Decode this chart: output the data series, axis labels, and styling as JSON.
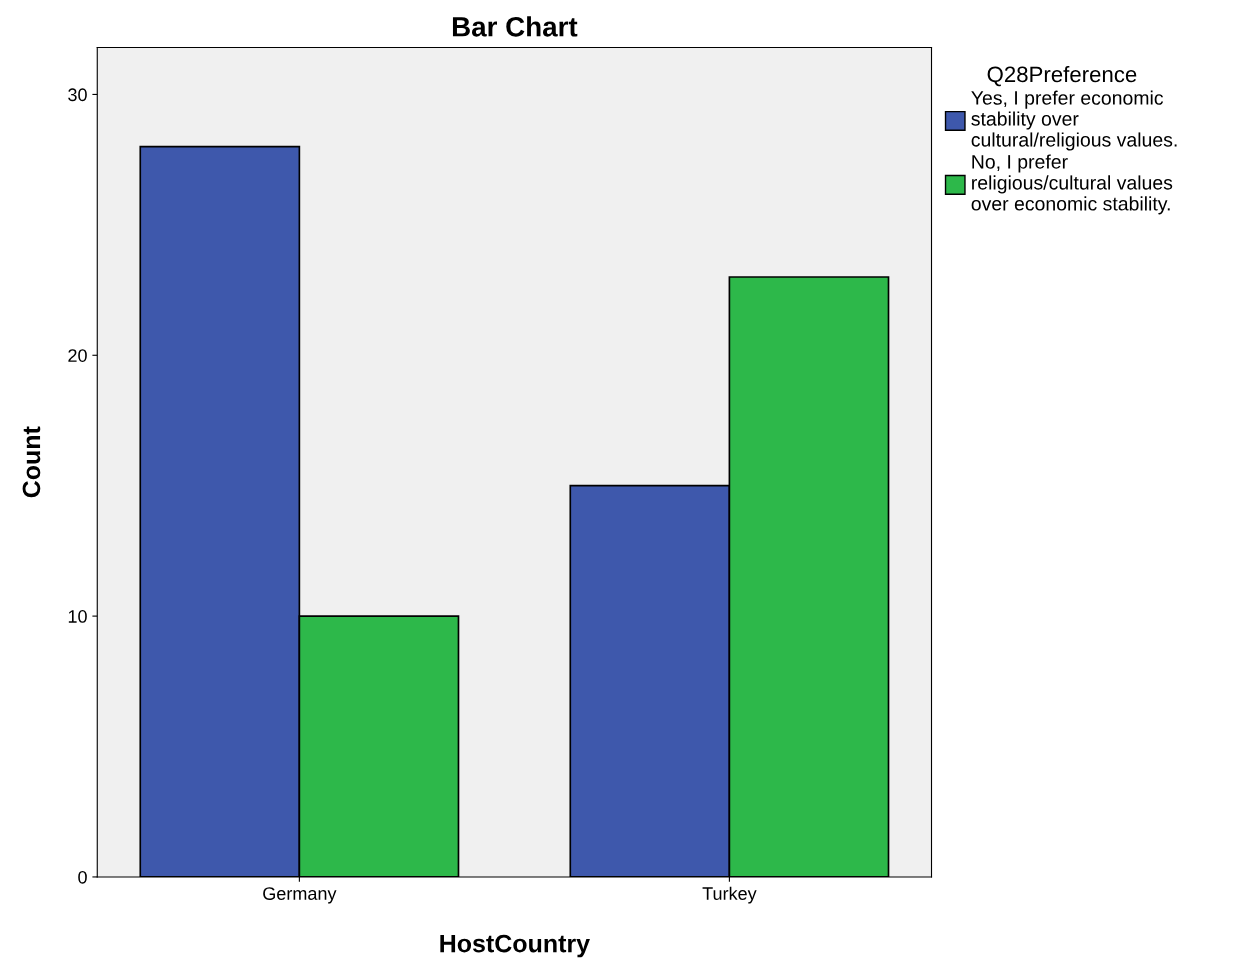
{
  "chart_data": {
    "type": "bar",
    "title": "Bar Chart",
    "xlabel": "HostCountry",
    "ylabel": "Count",
    "legend_title": "Q28Preference",
    "categories": [
      "Germany",
      "Turkey"
    ],
    "series": [
      {
        "name": "Yes, I prefer economic stability over cultural/religious values.",
        "color": "#3e58ac",
        "values": [
          28,
          15
        ]
      },
      {
        "name": "No, I prefer religious/cultural values over economic stability.",
        "color": "#2db84a",
        "values": [
          10,
          23
        ]
      }
    ],
    "ylim": [
      0,
      31.8
    ],
    "yticks": [
      0,
      10,
      20,
      30
    ],
    "grid": false,
    "legend": "top right"
  }
}
